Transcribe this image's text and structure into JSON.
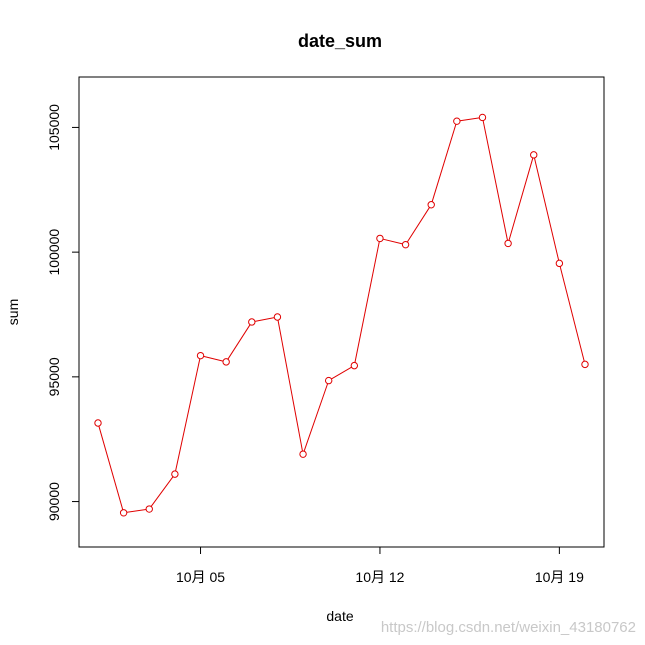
{
  "chart_data": {
    "type": "line",
    "title": "date_sum",
    "xlabel": "date",
    "ylabel": "sum",
    "x_unit": "date",
    "x": [
      "2020-10-01",
      "2020-10-02",
      "2020-10-03",
      "2020-10-04",
      "2020-10-05",
      "2020-10-06",
      "2020-10-07",
      "2020-10-08",
      "2020-10-09",
      "2020-10-10",
      "2020-10-11",
      "2020-10-12",
      "2020-10-13",
      "2020-10-14",
      "2020-10-15",
      "2020-10-16",
      "2020-10-17",
      "2020-10-18",
      "2020-10-19",
      "2020-10-20"
    ],
    "series": [
      {
        "values": [
          93150,
          89550,
          89700,
          91100,
          95850,
          95600,
          97200,
          97400,
          91900,
          94850,
          95450,
          100550,
          100300,
          101900,
          105250,
          105400,
          100350,
          103900,
          99550,
          95500
        ]
      }
    ],
    "ylim": [
      88900,
      106300
    ],
    "xlim": [
      "2020-10-01",
      "2020-10-20"
    ],
    "xticks": [
      {
        "date": "2020-10-05",
        "label": "10月 05"
      },
      {
        "date": "2020-10-12",
        "label": "10月 12"
      },
      {
        "date": "2020-10-19",
        "label": "10月 19"
      }
    ],
    "yticks": [
      {
        "value": 90000,
        "label": "90000"
      },
      {
        "value": 95000,
        "label": "95000"
      },
      {
        "value": 100000,
        "label": "100000"
      },
      {
        "value": 105000,
        "label": "105000"
      }
    ],
    "grid": false,
    "legend": "none",
    "line_color": "#e00000",
    "marker": "open-circle"
  },
  "watermark": "https://blog.csdn.net/weixin_43180762"
}
